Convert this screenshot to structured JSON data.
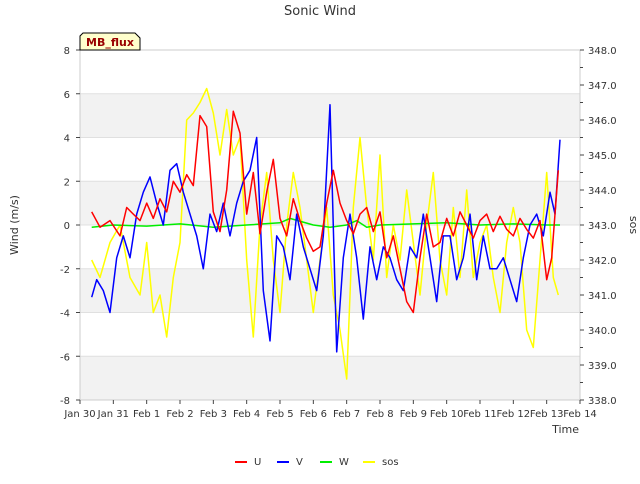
{
  "chart_data": {
    "type": "line",
    "title": "Sonic Wind",
    "xlabel": "Time",
    "ylabel": "Wind (m/s)",
    "y2label": "sos",
    "badge": "MB_flux",
    "x_range_days": [
      0,
      15
    ],
    "ylim": [
      -8,
      8
    ],
    "y2lim": [
      338.0,
      348.0
    ],
    "x_ticks": [
      {
        "value": 0,
        "label": "Jan 30"
      },
      {
        "value": 1,
        "label": "Jan 31"
      },
      {
        "value": 2,
        "label": "Feb 1"
      },
      {
        "value": 3,
        "label": "Feb 2"
      },
      {
        "value": 4,
        "label": "Feb 3"
      },
      {
        "value": 5,
        "label": "Feb 4"
      },
      {
        "value": 6,
        "label": "Feb 5"
      },
      {
        "value": 7,
        "label": "Feb 6"
      },
      {
        "value": 8,
        "label": "Feb 7"
      },
      {
        "value": 9,
        "label": "Feb 8"
      },
      {
        "value": 10,
        "label": "Feb 9"
      },
      {
        "value": 11,
        "label": "Feb 10"
      },
      {
        "value": 12,
        "label": "Feb 11"
      },
      {
        "value": 13,
        "label": "Feb 12"
      },
      {
        "value": 14,
        "label": "Feb 13"
      },
      {
        "value": 15,
        "label": "Feb 14"
      }
    ],
    "y_ticks": [
      {
        "value": 8,
        "label": "8"
      },
      {
        "value": 6,
        "label": "6"
      },
      {
        "value": 4,
        "label": "4"
      },
      {
        "value": 2,
        "label": "2"
      },
      {
        "value": 0,
        "label": "0"
      },
      {
        "value": -2,
        "label": "-2"
      },
      {
        "value": -4,
        "label": "-4"
      },
      {
        "value": -6,
        "label": "-6"
      },
      {
        "value": -8,
        "label": "-8"
      }
    ],
    "y2_ticks": [
      {
        "value": 348.0,
        "label": "348.0"
      },
      {
        "value": 347.0,
        "label": "347.0"
      },
      {
        "value": 346.0,
        "label": "346.0"
      },
      {
        "value": 345.0,
        "label": "345.0"
      },
      {
        "value": 344.0,
        "label": "344.0"
      },
      {
        "value": 343.0,
        "label": "343.0"
      },
      {
        "value": 342.0,
        "label": "342.0"
      },
      {
        "value": 341.0,
        "label": "341.0"
      },
      {
        "value": 340.0,
        "label": "340.0"
      },
      {
        "value": 339.0,
        "label": "339.0"
      },
      {
        "value": 338.0,
        "label": "338.0"
      }
    ],
    "series": [
      {
        "name": "U",
        "color": "#ff0000",
        "axis": "left",
        "x": [
          0.35,
          0.6,
          0.9,
          1.2,
          1.4,
          1.6,
          1.8,
          2.0,
          2.2,
          2.4,
          2.6,
          2.8,
          3.0,
          3.2,
          3.4,
          3.6,
          3.8,
          4.0,
          4.2,
          4.4,
          4.6,
          4.8,
          5.0,
          5.2,
          5.4,
          5.6,
          5.8,
          6.0,
          6.2,
          6.4,
          6.6,
          6.8,
          7.0,
          7.2,
          7.4,
          7.6,
          7.8,
          8.0,
          8.2,
          8.4,
          8.6,
          8.8,
          9.0,
          9.2,
          9.4,
          9.6,
          9.8,
          10.0,
          10.2,
          10.4,
          10.6,
          10.8,
          11.0,
          11.2,
          11.4,
          11.6,
          11.8,
          12.0,
          12.2,
          12.4,
          12.6,
          12.8,
          13.0,
          13.2,
          13.4,
          13.6,
          13.8,
          14.0,
          14.15,
          14.35
        ],
        "values": [
          0.6,
          -0.1,
          0.2,
          -0.5,
          0.8,
          0.5,
          0.2,
          1.0,
          0.3,
          1.2,
          0.6,
          2.0,
          1.5,
          2.3,
          1.8,
          5.0,
          4.5,
          0.6,
          -0.3,
          1.6,
          5.2,
          4.2,
          0.5,
          2.4,
          -0.4,
          1.5,
          3.0,
          0.3,
          -0.5,
          1.2,
          0.2,
          -0.6,
          -1.2,
          -1.0,
          1.0,
          2.5,
          1.0,
          0.2,
          -0.4,
          0.5,
          0.8,
          -0.3,
          0.6,
          -1.5,
          -0.5,
          -2.0,
          -3.5,
          -4.0,
          -1.5,
          0.5,
          -1.0,
          -0.8,
          0.3,
          -0.5,
          0.6,
          0.0,
          -0.6,
          0.2,
          0.5,
          -0.3,
          0.4,
          -0.2,
          -0.5,
          0.3,
          -0.2,
          -0.6,
          0.2,
          -2.5,
          -1.5,
          2.5
        ]
      },
      {
        "name": "V",
        "color": "#0000ff",
        "axis": "left",
        "x": [
          0.35,
          0.5,
          0.7,
          0.9,
          1.1,
          1.3,
          1.5,
          1.7,
          1.9,
          2.1,
          2.3,
          2.5,
          2.7,
          2.9,
          3.1,
          3.3,
          3.5,
          3.7,
          3.9,
          4.1,
          4.3,
          4.5,
          4.7,
          4.9,
          5.1,
          5.3,
          5.5,
          5.7,
          5.9,
          6.1,
          6.3,
          6.5,
          6.7,
          6.9,
          7.1,
          7.3,
          7.5,
          7.7,
          7.9,
          8.1,
          8.3,
          8.5,
          8.7,
          8.9,
          9.1,
          9.3,
          9.5,
          9.7,
          9.9,
          10.1,
          10.3,
          10.5,
          10.7,
          10.9,
          11.1,
          11.3,
          11.5,
          11.7,
          11.9,
          12.1,
          12.3,
          12.5,
          12.7,
          12.9,
          13.1,
          13.3,
          13.5,
          13.7,
          13.9,
          14.1,
          14.25,
          14.4
        ],
        "values": [
          -3.3,
          -2.5,
          -3.0,
          -4.0,
          -1.5,
          -0.5,
          -1.5,
          0.5,
          1.5,
          2.2,
          1.0,
          0.0,
          2.5,
          2.8,
          1.5,
          0.5,
          -0.5,
          -2.0,
          0.5,
          -0.3,
          1.0,
          -0.5,
          1.0,
          2.0,
          2.5,
          4.0,
          -3.0,
          -5.3,
          -0.5,
          -1.0,
          -2.5,
          0.5,
          -1.0,
          -2.0,
          -3.0,
          -0.5,
          5.5,
          -5.8,
          -1.5,
          0.5,
          -1.5,
          -4.3,
          -1.0,
          -2.5,
          -1.0,
          -1.5,
          -2.5,
          -3.0,
          -1.0,
          -1.5,
          0.5,
          -1.5,
          -3.5,
          -0.5,
          -0.5,
          -2.5,
          -1.5,
          0.5,
          -2.5,
          -0.5,
          -2.0,
          -2.0,
          -1.5,
          -2.5,
          -3.5,
          -1.5,
          0.0,
          0.5,
          -0.5,
          1.5,
          0.5,
          3.9
        ]
      },
      {
        "name": "W",
        "color": "#00ee00",
        "axis": "left",
        "x": [
          0.35,
          1.0,
          2.0,
          3.0,
          4.0,
          5.0,
          6.0,
          6.3,
          7.0,
          7.5,
          8.0,
          8.3,
          8.6,
          9.0,
          10.0,
          11.0,
          12.0,
          13.0,
          14.0,
          14.4
        ],
        "values": [
          -0.1,
          0.0,
          -0.05,
          0.05,
          -0.1,
          0.0,
          0.1,
          0.3,
          0.0,
          -0.1,
          0.0,
          0.2,
          -0.1,
          0.0,
          0.05,
          0.1,
          0.0,
          0.05,
          0.0,
          0.0
        ]
      },
      {
        "name": "sos",
        "color": "#ffff00",
        "axis": "right",
        "x": [
          0.35,
          0.6,
          0.9,
          1.2,
          1.5,
          1.8,
          2.0,
          2.2,
          2.4,
          2.6,
          2.8,
          3.0,
          3.2,
          3.4,
          3.6,
          3.8,
          4.0,
          4.2,
          4.4,
          4.6,
          4.8,
          5.0,
          5.2,
          5.4,
          5.6,
          5.8,
          6.0,
          6.2,
          6.4,
          6.6,
          6.8,
          7.0,
          7.2,
          7.4,
          7.6,
          7.8,
          8.0,
          8.1,
          8.2,
          8.4,
          8.6,
          8.8,
          9.0,
          9.2,
          9.4,
          9.6,
          9.8,
          10.0,
          10.2,
          10.4,
          10.6,
          10.8,
          11.0,
          11.2,
          11.4,
          11.6,
          11.8,
          12.0,
          12.2,
          12.4,
          12.6,
          12.8,
          13.0,
          13.2,
          13.4,
          13.6,
          13.8,
          14.0,
          14.2,
          14.35
        ],
        "values": [
          342.0,
          341.5,
          342.5,
          343.0,
          341.5,
          341.0,
          342.5,
          340.5,
          341.0,
          339.8,
          341.5,
          342.5,
          346.0,
          346.2,
          346.5,
          346.9,
          346.2,
          345.0,
          346.3,
          345.0,
          345.5,
          342.0,
          339.8,
          343.0,
          344.5,
          342.0,
          340.5,
          343.0,
          344.5,
          343.5,
          342.0,
          340.5,
          342.0,
          343.5,
          341.0,
          340.0,
          338.6,
          341.0,
          343.5,
          345.5,
          343.5,
          342.0,
          345.0,
          341.5,
          343.0,
          342.0,
          344.0,
          342.5,
          341.0,
          343.0,
          344.5,
          342.0,
          341.0,
          343.5,
          341.5,
          344.0,
          341.5,
          342.5,
          343.0,
          341.5,
          340.5,
          342.5,
          343.5,
          342.5,
          340.0,
          339.5,
          342.0,
          344.5,
          341.5,
          341.0
        ]
      }
    ]
  }
}
